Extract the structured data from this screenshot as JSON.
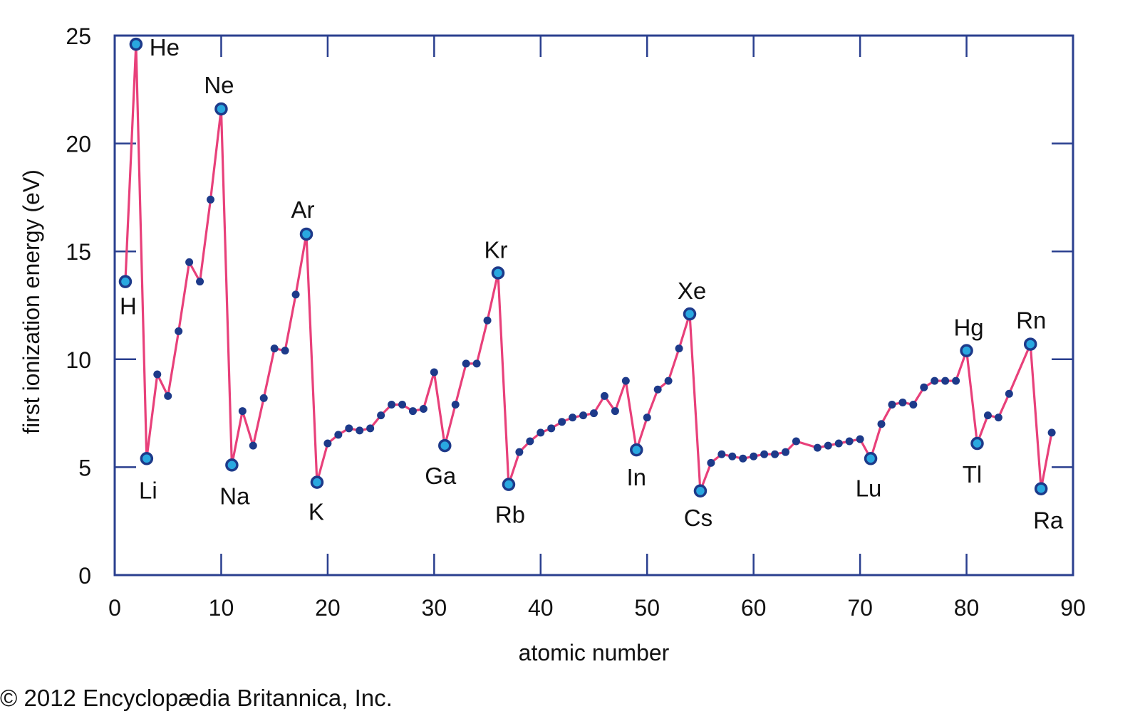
{
  "chart_data": {
    "type": "line",
    "title": "",
    "xlabel": "atomic number",
    "ylabel": "first ionization energy (eV)",
    "xlim": [
      0,
      90
    ],
    "ylim": [
      0,
      25
    ],
    "xticks": [
      "0",
      "10",
      "20",
      "30",
      "40",
      "50",
      "60",
      "70",
      "80",
      "90"
    ],
    "yticks": [
      "0",
      "5",
      "10",
      "15",
      "20",
      "25"
    ],
    "grid": false,
    "colors": {
      "line": "#e8407a",
      "marker": "#1d3a8a",
      "frame": "#2a3f8f",
      "highlight": "#29a8e0"
    },
    "series": [
      {
        "x": [
          1,
          2,
          3,
          4,
          5,
          6,
          7,
          8,
          9,
          10,
          11,
          12,
          13,
          14,
          15,
          16,
          17,
          18,
          19,
          20,
          21,
          22,
          23,
          24,
          25,
          26,
          27,
          28,
          29,
          30,
          31,
          32,
          33,
          34,
          35,
          36,
          37,
          38,
          39,
          40,
          41,
          42,
          43,
          44,
          45,
          46,
          47,
          48,
          49,
          50,
          51,
          52,
          53,
          54,
          55,
          56,
          57,
          58,
          59,
          60,
          61,
          62,
          63,
          64,
          66,
          67,
          68,
          69,
          70,
          71,
          72,
          73,
          74,
          75,
          76,
          77,
          78,
          79,
          80,
          81,
          82,
          83,
          84,
          86,
          87,
          88
        ],
        "y": [
          13.6,
          24.6,
          5.4,
          9.3,
          8.3,
          11.3,
          14.5,
          13.6,
          17.4,
          21.6,
          5.1,
          7.6,
          6.0,
          8.2,
          10.5,
          10.4,
          13.0,
          15.8,
          4.3,
          6.1,
          6.5,
          6.8,
          6.7,
          6.8,
          7.4,
          7.9,
          7.9,
          7.6,
          7.7,
          9.4,
          6.0,
          7.9,
          9.8,
          9.8,
          11.8,
          14.0,
          4.2,
          5.7,
          6.2,
          6.6,
          6.8,
          7.1,
          7.3,
          7.4,
          7.5,
          8.3,
          7.6,
          9.0,
          5.8,
          7.3,
          8.6,
          9.0,
          10.5,
          12.1,
          3.9,
          5.2,
          5.6,
          5.5,
          5.4,
          5.5,
          5.6,
          5.6,
          5.7,
          6.2,
          5.9,
          6.0,
          6.1,
          6.2,
          6.3,
          5.4,
          7.0,
          7.9,
          8.0,
          7.9,
          8.7,
          9.0,
          9.0,
          9.0,
          10.4,
          6.1,
          7.4,
          7.3,
          8.4,
          10.7,
          4.0,
          6.6
        ]
      }
    ],
    "annotations": [
      {
        "label": "H",
        "x": 1,
        "y": 13.6
      },
      {
        "label": "He",
        "x": 2,
        "y": 24.6
      },
      {
        "label": "Li",
        "x": 3,
        "y": 5.4
      },
      {
        "label": "Ne",
        "x": 10,
        "y": 21.6
      },
      {
        "label": "Na",
        "x": 11,
        "y": 5.1
      },
      {
        "label": "Ar",
        "x": 18,
        "y": 15.8
      },
      {
        "label": "K",
        "x": 19,
        "y": 4.3
      },
      {
        "label": "Ga",
        "x": 31,
        "y": 6.0
      },
      {
        "label": "Kr",
        "x": 36,
        "y": 14.0
      },
      {
        "label": "Rb",
        "x": 37,
        "y": 4.2
      },
      {
        "label": "In",
        "x": 49,
        "y": 5.8
      },
      {
        "label": "Xe",
        "x": 54,
        "y": 12.1
      },
      {
        "label": "Cs",
        "x": 55,
        "y": 3.9
      },
      {
        "label": "Lu",
        "x": 71,
        "y": 5.4
      },
      {
        "label": "Hg",
        "x": 80,
        "y": 10.4
      },
      {
        "label": "Tl",
        "x": 81,
        "y": 6.1
      },
      {
        "label": "Rn",
        "x": 86,
        "y": 10.7
      },
      {
        "label": "Ra",
        "x": 87,
        "y": 4.0
      }
    ]
  },
  "footer": {
    "copyright": "© 2012 Encyclopædia Britannica, Inc."
  }
}
